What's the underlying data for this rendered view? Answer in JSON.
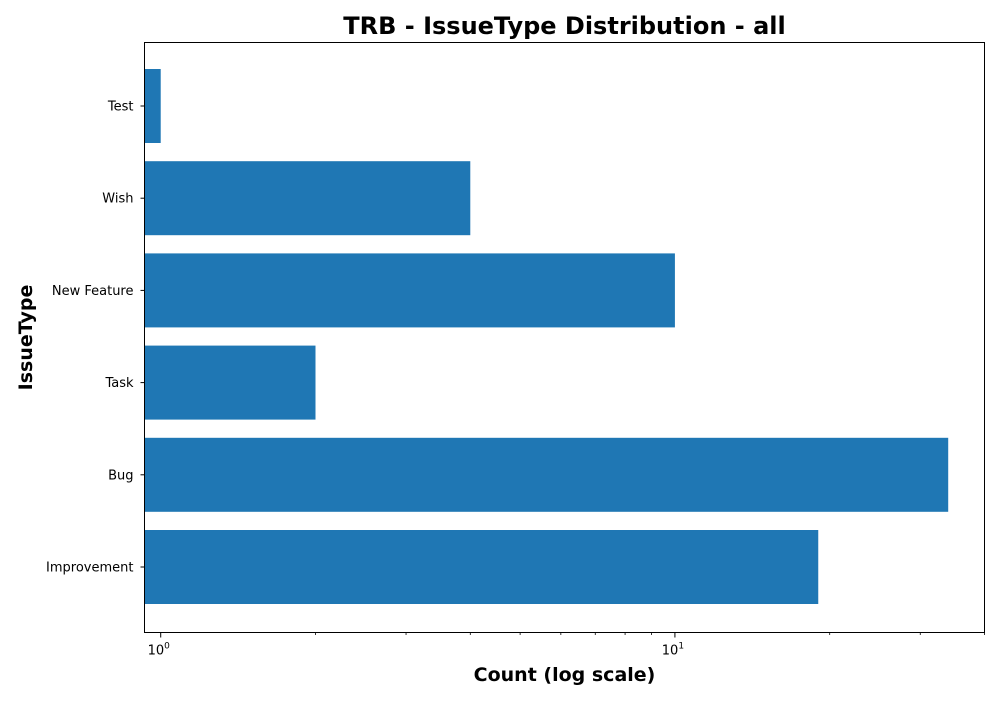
{
  "chart_data": {
    "type": "bar",
    "orientation": "horizontal",
    "title": "TRB - IssueType Distribution - all",
    "xlabel": "Count (log scale)",
    "ylabel": "IssueType",
    "x_scale": "log",
    "xlim": [
      0.93,
      40
    ],
    "x_ticks": [
      {
        "value": 1,
        "base": "10",
        "exponent": "0"
      },
      {
        "value": 10,
        "base": "10",
        "exponent": "1"
      }
    ],
    "categories": [
      "Test",
      "Wish",
      "New Feature",
      "Task",
      "Bug",
      "Improvement"
    ],
    "values": [
      1,
      4,
      10,
      2,
      34,
      19
    ],
    "bar_color": "#1f77b4",
    "grid": false,
    "legend": false
  }
}
